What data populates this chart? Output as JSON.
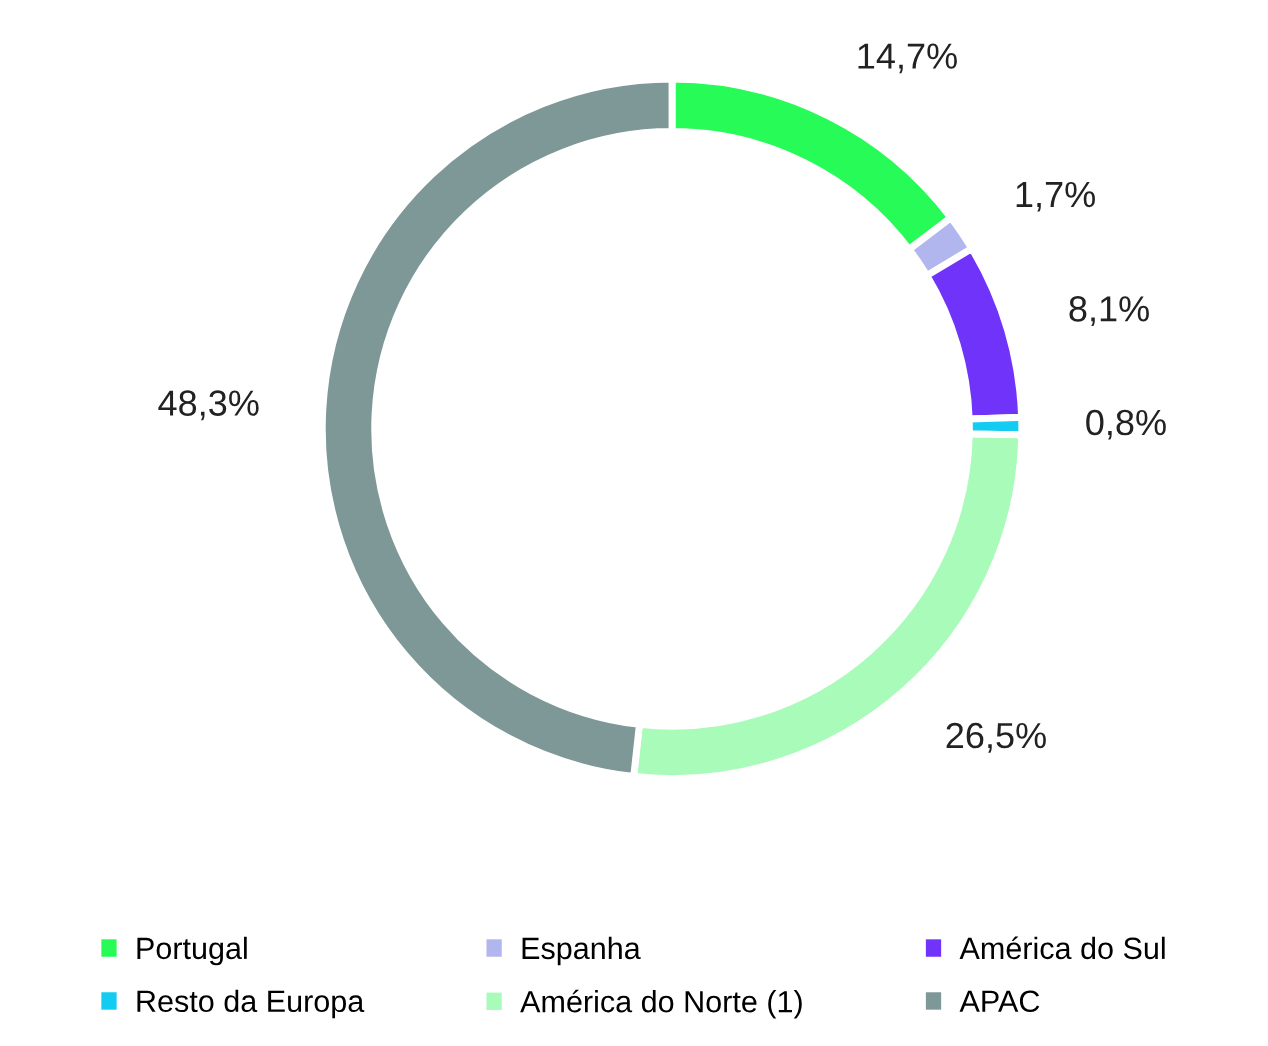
{
  "chart_data": {
    "type": "donut",
    "categories": [
      "Portugal",
      "Espanha",
      "América do Sul",
      "Resto da Europa",
      "América do Norte (1)",
      "APAC"
    ],
    "values": [
      14.7,
      1.7,
      8.1,
      0.8,
      26.5,
      48.3
    ],
    "colors": [
      "#27fb57",
      "#b1b6ee",
      "#7033f9",
      "#14cbf1",
      "#a8fbb8",
      "#7e9797"
    ],
    "value_labels": [
      "14,7%",
      "1,7%",
      "8,1%",
      "0,8%",
      "26,5%",
      "48,3%"
    ],
    "legend": "bottom"
  }
}
